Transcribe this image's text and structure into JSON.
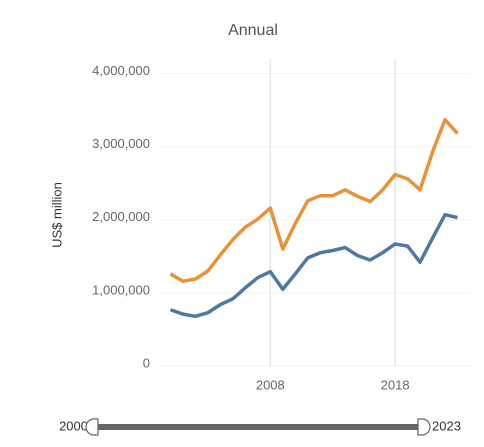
{
  "chart_data": {
    "type": "line",
    "title": "Annual",
    "y_label": "US$ million",
    "x": [
      2000,
      2001,
      2002,
      2003,
      2004,
      2005,
      2006,
      2007,
      2008,
      2009,
      2010,
      2011,
      2012,
      2013,
      2014,
      2015,
      2016,
      2017,
      2018,
      2019,
      2020,
      2021,
      2022,
      2023
    ],
    "series": [
      {
        "color": "#e8923a",
        "values": [
          1260000,
          1160000,
          1190000,
          1300000,
          1520000,
          1730000,
          1900000,
          2010000,
          2160000,
          1600000,
          1950000,
          2260000,
          2330000,
          2330000,
          2410000,
          2320000,
          2250000,
          2410000,
          2620000,
          2560000,
          2410000,
          2930000,
          3370000,
          3180000
        ]
      },
      {
        "color": "#4e79a7",
        "values": [
          770000,
          710000,
          680000,
          730000,
          840000,
          920000,
          1070000,
          1210000,
          1290000,
          1050000,
          1260000,
          1480000,
          1550000,
          1580000,
          1620000,
          1510000,
          1450000,
          1550000,
          1670000,
          1640000,
          1420000,
          1750000,
          2070000,
          2030000
        ]
      }
    ],
    "xlim": [
      1999,
      2024
    ],
    "xticks": [
      2008,
      2018
    ],
    "ylim": [
      0,
      4200000
    ],
    "yticks": [
      0,
      {
        "value": 1000000,
        "label": "1,000,000"
      },
      {
        "value": 2000000,
        "label": "2,000,000"
      },
      {
        "value": 3000000,
        "label": "3,000,000"
      },
      {
        "value": 4000000,
        "label": "4,000,000"
      }
    ],
    "grid": true,
    "slider": {
      "start": 2000,
      "end": 2023
    }
  }
}
